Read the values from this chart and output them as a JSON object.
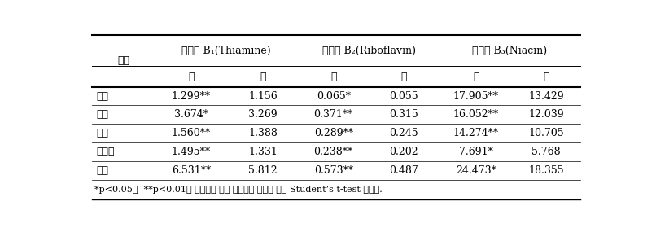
{
  "footnote": "*p<0.05와  **p<0.01는 동결건조 전후 영양성분 변화에 대한 Student’s t-test 결과임.",
  "col_group_labels": [
    "비타민 B₁(Thiamine)",
    "비타민 B₂(Riboflavin)",
    "비타민 B₃(Niacin)"
  ],
  "col_header_0": "부위",
  "sub_headers": [
    "전",
    "후",
    "전",
    "후",
    "전",
    "후"
  ],
  "rows": [
    [
      "갈비",
      "1.299**",
      "1.156",
      "0.065*",
      "0.055",
      "17.905**",
      "13.429"
    ],
    [
      "등심",
      "3.674*",
      "3.269",
      "0.371**",
      "0.315",
      "16.052**",
      "12.039"
    ],
    [
      "목살",
      "1.560**",
      "1.388",
      "0.289**",
      "0.245",
      "14.274**",
      "10.705"
    ],
    [
      "삼겹살",
      "1.495**",
      "1.331",
      "0.238**",
      "0.202",
      "7.691*",
      "5.768"
    ],
    [
      "안심",
      "6.531**",
      "5.812",
      "0.573**",
      "0.487",
      "24.473*",
      "18.355"
    ]
  ],
  "bg_color": "#ffffff",
  "text_color": "#000000",
  "header_fontsize": 9,
  "body_fontsize": 9,
  "footnote_fontsize": 8
}
